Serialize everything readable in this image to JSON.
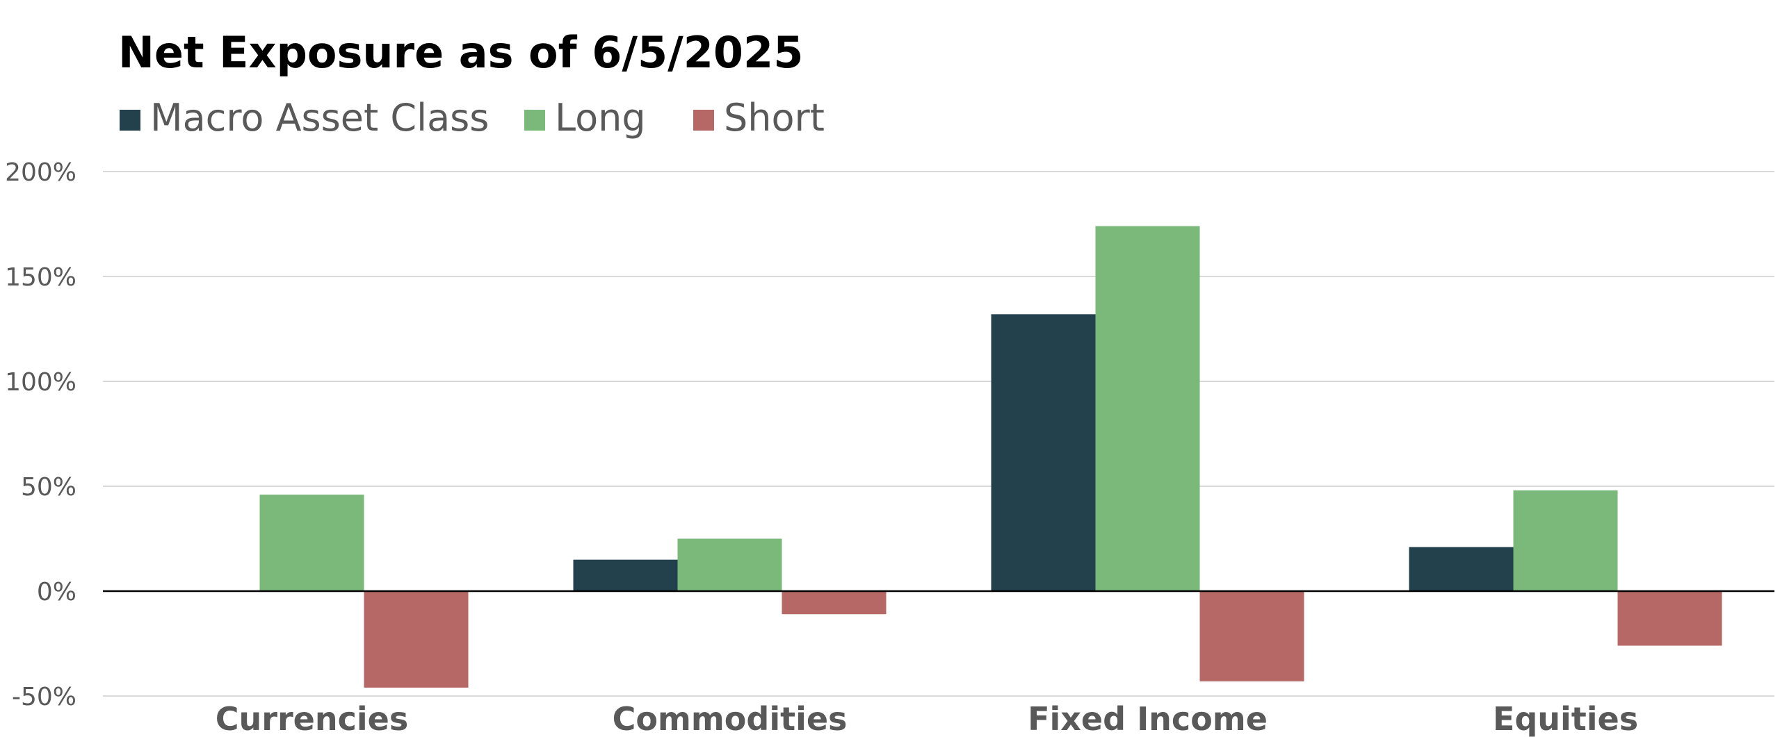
{
  "chart_data": {
    "type": "bar",
    "title": "Net Exposure as of 6/5/2025",
    "categories": [
      "Currencies",
      "Commodities",
      "Fixed Income",
      "Equities"
    ],
    "series": [
      {
        "name": "Macro Asset Class",
        "color": "#23414c",
        "values": [
          0,
          15,
          132,
          21
        ]
      },
      {
        "name": "Long",
        "color": "#7bb97a",
        "values": [
          46,
          25,
          174,
          48
        ]
      },
      {
        "name": "Short",
        "color": "#b66866",
        "values": [
          -46,
          -11,
          -43,
          -26
        ]
      }
    ],
    "ylim": [
      -50,
      200
    ],
    "yticks": [
      -50,
      0,
      50,
      100,
      150,
      200
    ],
    "ytick_labels": [
      "-50%",
      "0%",
      "50%",
      "100%",
      "150%",
      "200%"
    ],
    "y_unit": "%",
    "grid": true,
    "legend": "top-left",
    "colors": {
      "gridline": "#d9d9d9",
      "zero_line": "#000000",
      "tick_label": "#595959",
      "category_label": "#595959",
      "title": "#000000"
    }
  }
}
